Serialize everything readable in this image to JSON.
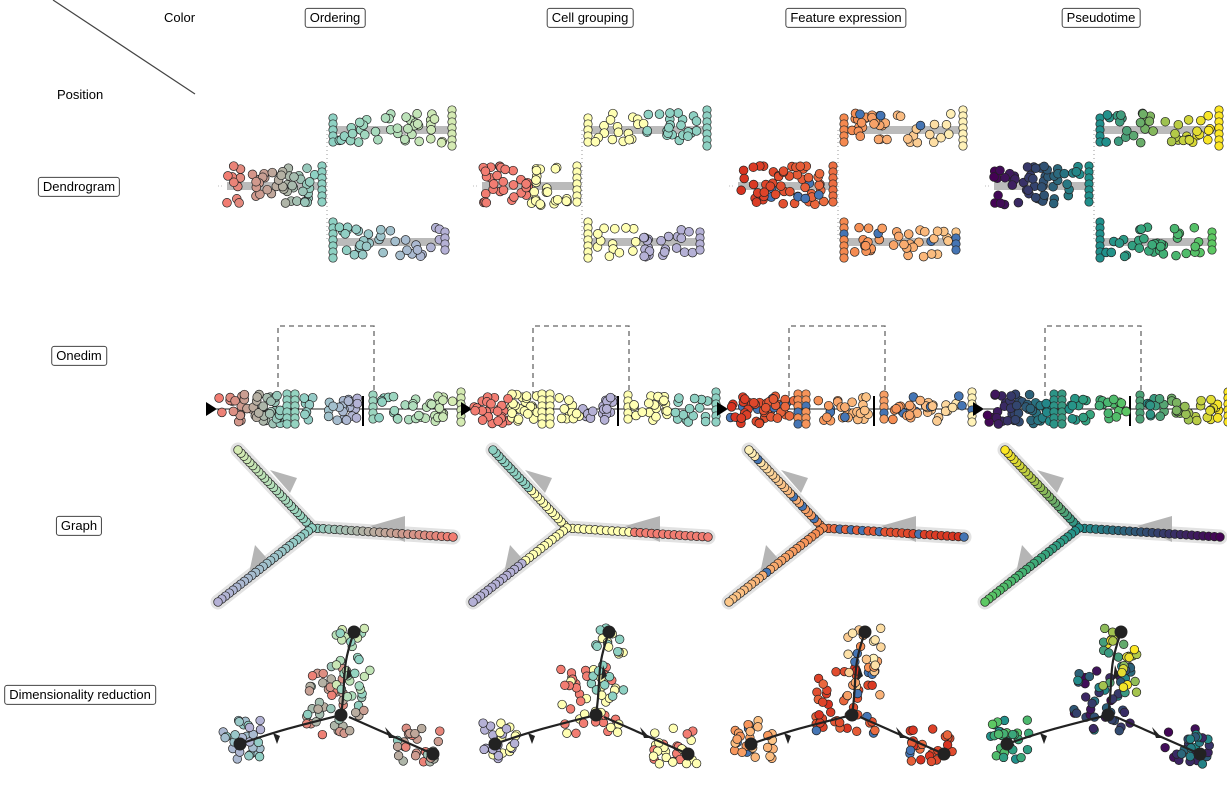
{
  "corner": {
    "color_label": "Color",
    "position_label": "Position"
  },
  "columns": [
    {
      "label": "Ordering",
      "scheme": "ordering"
    },
    {
      "label": "Cell grouping",
      "scheme": "grouping"
    },
    {
      "label": "Feature expression",
      "scheme": "expression"
    },
    {
      "label": "Pseudotime",
      "scheme": "pseudotime"
    }
  ],
  "rows": [
    {
      "label": "Dendrogram",
      "kind": "dendrogram"
    },
    {
      "label": "Onedim",
      "kind": "onedim"
    },
    {
      "label": "Graph",
      "kind": "graph"
    },
    {
      "label": "Dimensionality reduction",
      "kind": "dimred"
    }
  ],
  "palettes": {
    "ordering": [
      "#f27d72",
      "#b9998d",
      "#8ed1c3",
      "#d5ebb3",
      "#b5b1d6"
    ],
    "grouping": [
      "#f27d72",
      "#ffffb3",
      "#8ed1c3",
      "#ffffb3",
      "#b5b1d6"
    ],
    "expression": [
      "#d7301f",
      "#f5894f",
      "#fdc88a",
      "#fff2b8",
      "#4575b4"
    ],
    "pseudotime": [
      "#440154",
      "#3b528b",
      "#21908c",
      "#5dc863",
      "#fde725"
    ]
  },
  "colors": {
    "edge": "#bbbbbb",
    "outline": "#222222",
    "arrow": "#b5b5b5",
    "dash": "#666666"
  }
}
